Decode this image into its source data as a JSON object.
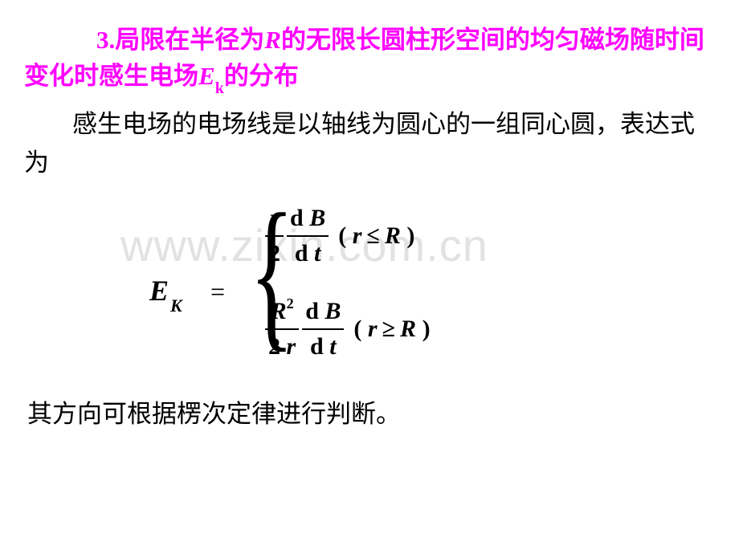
{
  "colors": {
    "heading": "#ff00ff",
    "body": "#000000",
    "background": "#ffffff",
    "watermark": "#e2e2e2"
  },
  "fonts": {
    "cjk": "SimSun",
    "math": "Times New Roman",
    "heading_size_pt": 31,
    "body_size_pt": 31,
    "formula_size_pt": 30,
    "watermark_size_pt": 56
  },
  "heading": {
    "number": "3.",
    "text_part1": "局限在半径为",
    "var_R": "R",
    "text_part2": "的无限长圆柱形空间的均匀磁场随时间变化时感生电场",
    "var_E": "E",
    "sub_k": "k",
    "text_part3": "的分布"
  },
  "intro": "感生电场的电场线是以轴线为圆心的一组同心圆，表达式为",
  "formula": {
    "lhs_E": "E",
    "lhs_sub": "K",
    "equals": "=",
    "case1": {
      "frac1_num": "r",
      "frac1_den": "2",
      "frac2_num_d": "d",
      "frac2_num_B": "B",
      "frac2_den_d": "d",
      "frac2_den_t": "t",
      "cond_open": "(",
      "cond_var": "r",
      "cond_rel": "≤",
      "cond_R": "R",
      "cond_close": ")"
    },
    "case2": {
      "frac1_num_R": "R",
      "frac1_num_sup": "2",
      "frac1_den_2": "2",
      "frac1_den_r": "r",
      "frac2_num_d": "d",
      "frac2_num_B": "B",
      "frac2_den_d": "d",
      "frac2_den_t": "t",
      "cond_open": "(",
      "cond_var": "r",
      "cond_rel": "≥",
      "cond_R": "R",
      "cond_close": ")"
    }
  },
  "conclusion": "其方向可根据楞次定律进行判断。",
  "watermark": "www.zixin.com.cn"
}
